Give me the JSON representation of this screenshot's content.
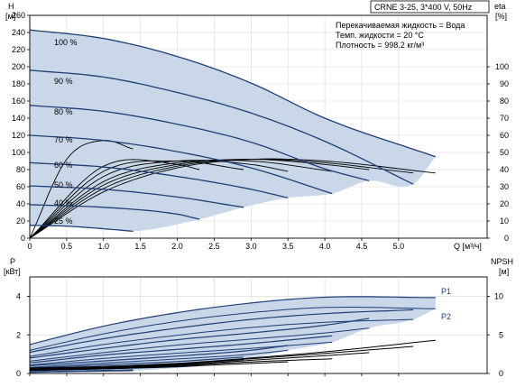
{
  "colors": {
    "envelope_fill": "#c9d7e8",
    "curve_blue": "#1f3f78",
    "curve_black": "#000000",
    "grid": "#d8d8d8",
    "frame": "#000000"
  },
  "chart_data": [
    {
      "id": "qh",
      "type": "line",
      "title": "CRNE 3-25, 3*400 V, 50Hz",
      "annotations": [
        "Перекачиваемая жидкость = Вода",
        "Темп. жидкости = 20 °C",
        "Плотность = 998.2 кг/м³"
      ],
      "ylabel_left": [
        "H",
        "[м]"
      ],
      "ylabel_right": [
        "eta",
        "[%]"
      ],
      "xlabel": "Q [м³/ч]",
      "xlim": [
        0,
        6.2
      ],
      "ylim": [
        0,
        260
      ],
      "ylim_right": [
        0,
        130
      ],
      "x_ticks": [
        "0",
        "0.5",
        "1.0",
        "1.5",
        "2.0",
        "2.5",
        "3.0",
        "3.5",
        "4.0",
        "4.5",
        "5.0"
      ],
      "y_ticks": [
        "0",
        "20",
        "40",
        "60",
        "80",
        "100",
        "120",
        "140",
        "160",
        "180",
        "200",
        "220",
        "240",
        "260"
      ],
      "y_ticks_right": [
        "0",
        "10",
        "20",
        "30",
        "40",
        "50",
        "60",
        "70",
        "80",
        "90",
        "100"
      ],
      "speed_labels": [
        "100 %",
        "90 %",
        "80 %",
        "70 %",
        "60 %",
        "50 %",
        "40 %",
        "25 %"
      ],
      "head_curves": [
        {
          "speed": 100,
          "x": [
            0,
            1,
            2,
            3,
            4,
            5.5
          ],
          "y": [
            243,
            233,
            212,
            181,
            140,
            95
          ]
        },
        {
          "speed": 90,
          "x": [
            0,
            1,
            2,
            3,
            4,
            5.2
          ],
          "y": [
            196,
            188,
            170,
            146,
            113,
            63
          ]
        },
        {
          "speed": 80,
          "x": [
            0,
            1,
            2,
            3,
            4,
            4.6
          ],
          "y": [
            155,
            148,
            133,
            112,
            81,
            67
          ]
        },
        {
          "speed": 70,
          "x": [
            0,
            1,
            2,
            3,
            4.1
          ],
          "y": [
            120,
            114,
            101,
            82,
            52
          ]
        },
        {
          "speed": 60,
          "x": [
            0,
            1,
            2,
            3,
            3.5
          ],
          "y": [
            88,
            83,
            72,
            57,
            47
          ]
        },
        {
          "speed": 50,
          "x": [
            0,
            1,
            2,
            2.9
          ],
          "y": [
            61,
            57,
            48,
            36
          ]
        },
        {
          "speed": 40,
          "x": [
            0,
            1,
            2,
            2.3
          ],
          "y": [
            39,
            36,
            28,
            22
          ]
        },
        {
          "speed": 25,
          "x": [
            0,
            0.5,
            1,
            1.4
          ],
          "y": [
            15,
            14,
            11,
            8
          ]
        }
      ],
      "efficiency_curves": [
        {
          "speed": 100,
          "x": [
            0,
            1,
            2,
            3,
            4,
            5.5
          ],
          "eta": [
            0,
            27,
            41,
            46,
            45,
            38
          ]
        },
        {
          "speed": 90,
          "x": [
            0,
            1,
            2,
            3,
            4,
            5.2
          ],
          "eta": [
            0,
            29,
            42,
            46,
            44,
            38
          ]
        },
        {
          "speed": 80,
          "x": [
            0,
            1,
            2,
            3,
            4,
            4.6
          ],
          "eta": [
            0,
            31,
            43,
            46,
            43,
            40
          ]
        },
        {
          "speed": 70,
          "x": [
            0,
            1,
            2,
            3,
            4.1
          ],
          "eta": [
            0,
            33,
            44,
            45,
            39
          ]
        },
        {
          "speed": 60,
          "x": [
            0,
            1,
            2,
            3,
            3.5
          ],
          "eta": [
            0,
            36,
            45,
            43,
            39
          ]
        },
        {
          "speed": 50,
          "x": [
            0,
            1,
            2,
            2.9
          ],
          "eta": [
            0,
            39,
            45,
            40
          ]
        },
        {
          "speed": 40,
          "x": [
            0,
            1,
            2,
            2.3
          ],
          "eta": [
            0,
            42,
            43,
            40
          ]
        },
        {
          "speed": 25,
          "x": [
            0,
            0.5,
            1,
            1.4
          ],
          "eta": [
            0,
            46,
            57,
            52
          ]
        }
      ],
      "envelope": {
        "upper": {
          "x": [
            0,
            1,
            2,
            3,
            4,
            5.5
          ],
          "y": [
            243,
            233,
            212,
            181,
            140,
            95
          ]
        },
        "lower": {
          "x": [
            0,
            0.5,
            1,
            1.4,
            2.3,
            2.9,
            3.5,
            4.1,
            4.6,
            5.2,
            5.5
          ],
          "y": [
            15,
            14,
            11,
            8,
            22,
            36,
            47,
            52,
            67,
            63,
            95
          ]
        }
      },
      "grid": true
    },
    {
      "id": "power",
      "type": "line",
      "ylabel_left": [
        "P",
        "[кВт]"
      ],
      "ylabel_right": [
        "NPSH",
        "[м]"
      ],
      "xlim": [
        0,
        6.2
      ],
      "ylim": [
        0,
        5
      ],
      "ylim_right": [
        0,
        12.5
      ],
      "y_ticks": [
        "0",
        "2",
        "4"
      ],
      "y_ticks_right": [
        "0",
        "5",
        "10"
      ],
      "series_labels": [
        "P1",
        "P2"
      ],
      "p1_curves": [
        {
          "speed": 100,
          "x": [
            0,
            1,
            2,
            3,
            4,
            5.5
          ],
          "y": [
            1.5,
            2.45,
            3.15,
            3.65,
            3.95,
            3.93
          ]
        },
        {
          "speed": 90,
          "x": [
            0,
            1,
            2,
            3,
            4,
            5.2
          ],
          "y": [
            1.1,
            1.8,
            2.35,
            2.8,
            3.1,
            3.3
          ]
        },
        {
          "speed": 80,
          "x": [
            0,
            1,
            2,
            3,
            4,
            4.6
          ],
          "y": [
            0.8,
            1.3,
            1.75,
            2.1,
            2.5,
            2.85
          ]
        },
        {
          "speed": 70,
          "x": [
            0,
            1,
            2,
            3,
            4.1
          ],
          "y": [
            0.55,
            0.95,
            1.25,
            1.55,
            1.95
          ]
        },
        {
          "speed": 60,
          "x": [
            0,
            1,
            2,
            3,
            3.5
          ],
          "y": [
            0.4,
            0.65,
            0.9,
            1.2,
            1.45
          ]
        },
        {
          "speed": 50,
          "x": [
            0,
            1,
            2,
            2.9
          ],
          "y": [
            0.28,
            0.45,
            0.62,
            0.85
          ]
        },
        {
          "speed": 40,
          "x": [
            0,
            1,
            2,
            2.3
          ],
          "y": [
            0.18,
            0.3,
            0.42,
            0.5
          ]
        },
        {
          "speed": 25,
          "x": [
            0,
            0.5,
            1,
            1.4
          ],
          "y": [
            0.08,
            0.12,
            0.16,
            0.19
          ]
        }
      ],
      "p2_curves": [
        {
          "speed": 100,
          "x": [
            0,
            1,
            2,
            3,
            4,
            5.5
          ],
          "y": [
            1.2,
            2.05,
            2.7,
            3.15,
            3.42,
            3.35
          ]
        },
        {
          "speed": 90,
          "x": [
            0,
            1,
            2,
            3,
            4,
            5.2
          ],
          "y": [
            0.88,
            1.5,
            1.98,
            2.38,
            2.65,
            2.8
          ]
        },
        {
          "speed": 80,
          "x": [
            0,
            1,
            2,
            3,
            4,
            4.6
          ],
          "y": [
            0.64,
            1.08,
            1.47,
            1.78,
            2.1,
            2.35
          ]
        },
        {
          "speed": 70,
          "x": [
            0,
            1,
            2,
            3,
            4.1
          ],
          "y": [
            0.44,
            0.78,
            1.05,
            1.3,
            1.62
          ]
        },
        {
          "speed": 60,
          "x": [
            0,
            1,
            2,
            3,
            3.5
          ],
          "y": [
            0.32,
            0.54,
            0.75,
            1.0,
            1.2
          ]
        },
        {
          "speed": 50,
          "x": [
            0,
            1,
            2,
            2.9
          ],
          "y": [
            0.22,
            0.37,
            0.52,
            0.7
          ]
        },
        {
          "speed": 40,
          "x": [
            0,
            1,
            2,
            2.3
          ],
          "y": [
            0.14,
            0.24,
            0.34,
            0.4
          ]
        },
        {
          "speed": 25,
          "x": [
            0,
            0.5,
            1,
            1.4
          ],
          "y": [
            0.06,
            0.09,
            0.12,
            0.14
          ]
        }
      ],
      "npsh_curves": [
        {
          "speed": 100,
          "x": [
            0,
            1,
            2,
            3,
            4,
            5.5
          ],
          "npsh": [
            0.7,
            0.9,
            1.3,
            2.0,
            2.8,
            4.3
          ]
        },
        {
          "speed": 90,
          "x": [
            0,
            1,
            2,
            3,
            4,
            5.2
          ],
          "npsh": [
            0.6,
            0.8,
            1.2,
            1.9,
            2.6,
            3.5
          ]
        },
        {
          "speed": 80,
          "x": [
            0,
            1,
            2,
            3,
            4,
            4.6
          ],
          "npsh": [
            0.5,
            0.7,
            1.1,
            1.7,
            2.3,
            2.7
          ]
        },
        {
          "speed": 70,
          "x": [
            0,
            1,
            2,
            3,
            4.1
          ],
          "npsh": [
            0.45,
            0.65,
            1.0,
            1.5,
            1.9
          ]
        },
        {
          "speed": 60,
          "x": [
            0,
            1,
            2,
            3,
            3.5
          ],
          "npsh": [
            0.4,
            0.6,
            0.9,
            1.3,
            1.5
          ]
        }
      ],
      "envelope": {
        "upper": {
          "x": [
            0,
            1,
            2,
            3,
            4,
            5.5
          ],
          "y": [
            1.5,
            2.45,
            3.15,
            3.65,
            3.95,
            3.93
          ]
        },
        "lower": {
          "x": [
            0,
            1.4,
            2.3,
            2.9,
            3.5,
            4.1,
            4.6,
            5.2,
            5.5
          ],
          "y": [
            0.06,
            0.14,
            0.4,
            0.7,
            1.2,
            1.62,
            2.35,
            2.8,
            3.35
          ]
        }
      },
      "grid": true
    }
  ]
}
